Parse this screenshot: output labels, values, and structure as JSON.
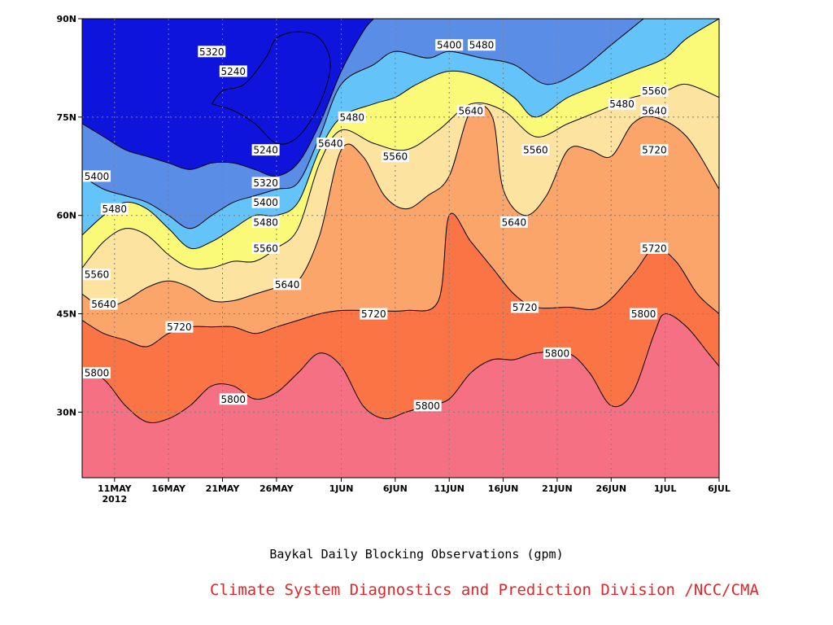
{
  "chart_data": {
    "type": "heatmap",
    "subtitle": "Baykal Daily Blocking Observations (gpm)",
    "credit": "Climate System Diagnostics and Prediction Division /NCC/CMA",
    "x_ticks": [
      {
        "date": "2012-05-11",
        "label": "11MAY",
        "sublabel": "2012"
      },
      {
        "date": "2012-05-16",
        "label": "16MAY"
      },
      {
        "date": "2012-05-21",
        "label": "21MAY"
      },
      {
        "date": "2012-05-26",
        "label": "26MAY"
      },
      {
        "date": "2012-06-01",
        "label": "1JUN"
      },
      {
        "date": "2012-06-06",
        "label": "6JUN"
      },
      {
        "date": "2012-06-11",
        "label": "11JUN"
      },
      {
        "date": "2012-06-16",
        "label": "16JUN"
      },
      {
        "date": "2012-06-21",
        "label": "21JUN"
      },
      {
        "date": "2012-06-26",
        "label": "26JUN"
      },
      {
        "date": "2012-07-01",
        "label": "1JUL"
      },
      {
        "date": "2012-07-06",
        "label": "6JUL"
      }
    ],
    "x_range": [
      "2012-05-08",
      "2012-07-06"
    ],
    "y_ticks": [
      {
        "value": 30,
        "label": "30N"
      },
      {
        "value": 45,
        "label": "45N"
      },
      {
        "value": 60,
        "label": "60N"
      },
      {
        "value": 75,
        "label": "75N"
      },
      {
        "value": 90,
        "label": "90N"
      }
    ],
    "y_range": [
      20,
      90
    ],
    "grid": true,
    "levels": [
      5240,
      5320,
      5400,
      5480,
      5560,
      5640,
      5720,
      5800
    ],
    "level_colors": {
      "below_5240": "#0e14dc",
      "5240": "#4b50eb",
      "5320": "#5a8ee6",
      "5400": "#64c4fa",
      "5480": "#fafa78",
      "5560": "#fde3a0",
      "5640": "#fba56a",
      "5720": "#fb7446",
      "5800": "#f57082"
    },
    "contours": [
      {
        "level": 5800,
        "points": [
          [
            "2012-05-08",
            36
          ],
          [
            "2012-05-10",
            35
          ],
          [
            "2012-05-12",
            31
          ],
          [
            "2012-05-14",
            28.5
          ],
          [
            "2012-05-16",
            29
          ],
          [
            "2012-05-18",
            31
          ],
          [
            "2012-05-20",
            34
          ],
          [
            "2012-05-22",
            34
          ],
          [
            "2012-05-24",
            32
          ],
          [
            "2012-05-26",
            33
          ],
          [
            "2012-05-28",
            36
          ],
          [
            "2012-05-30",
            39
          ],
          [
            "2012-06-01",
            37
          ],
          [
            "2012-06-03",
            31
          ],
          [
            "2012-06-05",
            29
          ],
          [
            "2012-06-07",
            30
          ],
          [
            "2012-06-09",
            31
          ],
          [
            "2012-06-11",
            32
          ],
          [
            "2012-06-13",
            36
          ],
          [
            "2012-06-15",
            38
          ],
          [
            "2012-06-17",
            38
          ],
          [
            "2012-06-19",
            39
          ],
          [
            "2012-06-22",
            39
          ],
          [
            "2012-06-24",
            36
          ],
          [
            "2012-06-26",
            31
          ],
          [
            "2012-06-28",
            33
          ],
          [
            "2012-06-30",
            42
          ],
          [
            "2012-07-01",
            45
          ],
          [
            "2012-07-03",
            43
          ],
          [
            "2012-07-05",
            39
          ],
          [
            "2012-07-06",
            37
          ]
        ]
      },
      {
        "level": 5720,
        "points": [
          [
            "2012-05-08",
            44
          ],
          [
            "2012-05-10",
            42
          ],
          [
            "2012-05-12",
            41
          ],
          [
            "2012-05-14",
            40
          ],
          [
            "2012-05-16",
            42
          ],
          [
            "2012-05-18",
            43
          ],
          [
            "2012-05-20",
            43
          ],
          [
            "2012-05-22",
            43
          ],
          [
            "2012-05-24",
            42
          ],
          [
            "2012-05-26",
            43
          ],
          [
            "2012-05-28",
            44
          ],
          [
            "2012-05-30",
            45
          ],
          [
            "2012-06-01",
            45.5
          ],
          [
            "2012-06-04",
            45.5
          ],
          [
            "2012-06-07",
            45.5
          ],
          [
            "2012-06-10",
            47
          ],
          [
            "2012-06-11",
            60
          ],
          [
            "2012-06-13",
            56
          ],
          [
            "2012-06-15",
            52
          ],
          [
            "2012-06-17",
            48
          ],
          [
            "2012-06-19",
            46
          ],
          [
            "2012-06-22",
            46
          ],
          [
            "2012-06-25",
            46
          ],
          [
            "2012-06-28",
            51
          ],
          [
            "2012-06-30",
            55
          ],
          [
            "2012-07-02",
            53
          ],
          [
            "2012-07-04",
            48
          ],
          [
            "2012-07-06",
            45
          ]
        ]
      },
      {
        "level": 5640,
        "points": [
          [
            "2012-05-08",
            48
          ],
          [
            "2012-05-10",
            46
          ],
          [
            "2012-05-12",
            47
          ],
          [
            "2012-05-14",
            49
          ],
          [
            "2012-05-16",
            50
          ],
          [
            "2012-05-18",
            49
          ],
          [
            "2012-05-20",
            47
          ],
          [
            "2012-05-22",
            47
          ],
          [
            "2012-05-24",
            48
          ],
          [
            "2012-05-26",
            49
          ],
          [
            "2012-05-28",
            50
          ],
          [
            "2012-05-30",
            57
          ],
          [
            "2012-06-01",
            70
          ],
          [
            "2012-06-03",
            69
          ],
          [
            "2012-06-05",
            63
          ],
          [
            "2012-06-07",
            61
          ],
          [
            "2012-06-09",
            63
          ],
          [
            "2012-06-11",
            66
          ],
          [
            "2012-06-13",
            76
          ],
          [
            "2012-06-15",
            75
          ],
          [
            "2012-06-16",
            64
          ],
          [
            "2012-06-18",
            60
          ],
          [
            "2012-06-20",
            63
          ],
          [
            "2012-06-22",
            70
          ],
          [
            "2012-06-24",
            70
          ],
          [
            "2012-06-26",
            69
          ],
          [
            "2012-06-28",
            74
          ],
          [
            "2012-06-30",
            75
          ],
          [
            "2012-07-03",
            72
          ],
          [
            "2012-07-06",
            64
          ]
        ]
      },
      {
        "level": 5560,
        "points": [
          [
            "2012-05-08",
            52
          ],
          [
            "2012-05-10",
            56
          ],
          [
            "2012-05-12",
            58
          ],
          [
            "2012-05-14",
            57
          ],
          [
            "2012-05-16",
            54
          ],
          [
            "2012-05-18",
            52
          ],
          [
            "2012-05-20",
            52
          ],
          [
            "2012-05-22",
            53
          ],
          [
            "2012-05-24",
            53
          ],
          [
            "2012-05-26",
            55
          ],
          [
            "2012-05-28",
            58
          ],
          [
            "2012-05-30",
            68
          ],
          [
            "2012-06-01",
            73
          ],
          [
            "2012-06-04",
            71
          ],
          [
            "2012-06-07",
            70
          ],
          [
            "2012-06-10",
            73
          ],
          [
            "2012-06-13",
            77
          ],
          [
            "2012-06-16",
            76
          ],
          [
            "2012-06-19",
            72
          ],
          [
            "2012-06-22",
            74
          ],
          [
            "2012-06-25",
            76
          ],
          [
            "2012-06-28",
            78
          ],
          [
            "2012-07-01",
            79
          ],
          [
            "2012-07-03",
            80
          ],
          [
            "2012-07-06",
            78
          ]
        ]
      },
      {
        "level": 5480,
        "points": [
          [
            "2012-05-08",
            57
          ],
          [
            "2012-05-10",
            60
          ],
          [
            "2012-05-12",
            62
          ],
          [
            "2012-05-14",
            61
          ],
          [
            "2012-05-16",
            58
          ],
          [
            "2012-05-18",
            55
          ],
          [
            "2012-05-20",
            56
          ],
          [
            "2012-05-22",
            58
          ],
          [
            "2012-05-24",
            60
          ],
          [
            "2012-05-26",
            60
          ],
          [
            "2012-05-28",
            62
          ],
          [
            "2012-05-30",
            70
          ],
          [
            "2012-06-01",
            75
          ],
          [
            "2012-06-04",
            77
          ],
          [
            "2012-06-06",
            78
          ],
          [
            "2012-06-08",
            80
          ],
          [
            "2012-06-11",
            82
          ],
          [
            "2012-06-14",
            81
          ],
          [
            "2012-06-17",
            78
          ],
          [
            "2012-06-19",
            75
          ],
          [
            "2012-06-22",
            78
          ],
          [
            "2012-06-25",
            80
          ],
          [
            "2012-06-28",
            82
          ],
          [
            "2012-07-01",
            84
          ],
          [
            "2012-07-03",
            87
          ],
          [
            "2012-07-06",
            90
          ]
        ]
      },
      {
        "level": 5400,
        "points": [
          [
            "2012-05-08",
            66
          ],
          [
            "2012-05-10",
            64
          ],
          [
            "2012-05-12",
            63
          ],
          [
            "2012-05-14",
            62
          ],
          [
            "2012-05-16",
            60
          ],
          [
            "2012-05-18",
            58
          ],
          [
            "2012-05-20",
            60
          ],
          [
            "2012-05-22",
            62
          ],
          [
            "2012-05-24",
            63
          ],
          [
            "2012-05-26",
            64
          ],
          [
            "2012-05-28",
            65
          ],
          [
            "2012-05-30",
            72
          ],
          [
            "2012-06-01",
            80
          ],
          [
            "2012-06-04",
            83
          ],
          [
            "2012-06-06",
            85
          ],
          [
            "2012-06-09",
            84
          ],
          [
            "2012-06-11",
            85
          ],
          [
            "2012-06-14",
            84
          ],
          [
            "2012-06-17",
            83
          ],
          [
            "2012-06-20",
            80
          ],
          [
            "2012-06-23",
            82
          ],
          [
            "2012-06-26",
            86
          ],
          [
            "2012-06-29",
            90
          ]
        ]
      },
      {
        "level": 5320,
        "points": [
          [
            "2012-05-08",
            74
          ],
          [
            "2012-05-10",
            72
          ],
          [
            "2012-05-12",
            70
          ],
          [
            "2012-05-14",
            69
          ],
          [
            "2012-05-16",
            68
          ],
          [
            "2012-05-18",
            67
          ],
          [
            "2012-05-20",
            68
          ],
          [
            "2012-05-22",
            68
          ],
          [
            "2012-05-24",
            67
          ],
          [
            "2012-05-26",
            66
          ],
          [
            "2012-05-28",
            68
          ],
          [
            "2012-05-30",
            74
          ],
          [
            "2012-06-01",
            82
          ],
          [
            "2012-06-03",
            88
          ],
          [
            "2012-06-04",
            90
          ]
        ]
      },
      {
        "level": 5240,
        "points": [
          [
            "2012-05-20",
            77
          ],
          [
            "2012-05-22",
            76
          ],
          [
            "2012-05-24",
            74
          ],
          [
            "2012-05-26",
            71
          ],
          [
            "2012-05-28",
            72
          ],
          [
            "2012-05-30",
            77
          ],
          [
            "2012-05-31",
            83
          ],
          [
            "2012-05-30",
            87
          ],
          [
            "2012-05-28",
            88
          ],
          [
            "2012-05-26",
            87
          ],
          [
            "2012-05-25",
            84
          ],
          [
            "2012-05-23",
            80
          ],
          [
            "2012-05-21",
            79
          ],
          [
            "2012-05-20",
            77
          ]
        ]
      }
    ],
    "contour_labels": [
      {
        "text": "5240",
        "x": "2012-05-22",
        "y": 82
      },
      {
        "text": "5240",
        "x": "2012-05-25",
        "y": 70
      },
      {
        "text": "5320",
        "x": "2012-05-20",
        "y": 85
      },
      {
        "text": "5320",
        "x": "2012-05-25",
        "y": 65
      },
      {
        "text": "5400",
        "x": "2012-05-08",
        "y": 66
      },
      {
        "text": "5400",
        "x": "2012-05-25",
        "y": 62
      },
      {
        "text": "5400",
        "x": "2012-06-11",
        "y": 86
      },
      {
        "text": "5480",
        "x": "2012-05-11",
        "y": 61
      },
      {
        "text": "5480",
        "x": "2012-05-25",
        "y": 59
      },
      {
        "text": "5480",
        "x": "2012-06-02",
        "y": 75
      },
      {
        "text": "5480",
        "x": "2012-06-14",
        "y": 86
      },
      {
        "text": "5480",
        "x": "2012-06-27",
        "y": 77
      },
      {
        "text": "5560",
        "x": "2012-05-09",
        "y": 51
      },
      {
        "text": "5560",
        "x": "2012-05-25",
        "y": 55
      },
      {
        "text": "5560",
        "x": "2012-06-06",
        "y": 69
      },
      {
        "text": "5560",
        "x": "2012-06-19",
        "y": 70
      },
      {
        "text": "5560",
        "x": "2012-06-30",
        "y": 79
      },
      {
        "text": "5640",
        "x": "2012-05-10",
        "y": 46.5
      },
      {
        "text": "5640",
        "x": "2012-05-27",
        "y": 49.5
      },
      {
        "text": "5640",
        "x": "2012-05-31",
        "y": 71
      },
      {
        "text": "5640",
        "x": "2012-06-13",
        "y": 76
      },
      {
        "text": "5640",
        "x": "2012-06-17",
        "y": 59
      },
      {
        "text": "5640",
        "x": "2012-06-30",
        "y": 76
      },
      {
        "text": "5720",
        "x": "2012-05-17",
        "y": 43
      },
      {
        "text": "5720",
        "x": "2012-06-04",
        "y": 45
      },
      {
        "text": "5720",
        "x": "2012-06-18",
        "y": 46
      },
      {
        "text": "5720",
        "x": "2012-06-30",
        "y": 70
      },
      {
        "text": "5720",
        "x": "2012-06-30",
        "y": 55
      },
      {
        "text": "5800",
        "x": "2012-05-08",
        "y": 36
      },
      {
        "text": "5800",
        "x": "2012-05-22",
        "y": 32
      },
      {
        "text": "5800",
        "x": "2012-06-09",
        "y": 31
      },
      {
        "text": "5800",
        "x": "2012-06-21",
        "y": 39
      },
      {
        "text": "5800",
        "x": "2012-06-29",
        "y": 45
      }
    ]
  }
}
